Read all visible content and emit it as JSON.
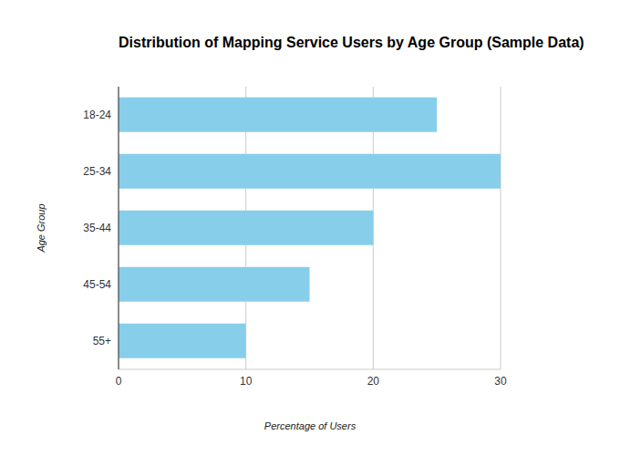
{
  "chart_data": {
    "type": "bar",
    "title": "Distribution of Mapping Service Users by Age Group (Sample Data)",
    "x_label": "Percentage of Users",
    "y_label": "Age Group",
    "categories": [
      "18-24",
      "25-34",
      "35-44",
      "45-54",
      "55+"
    ],
    "values": [
      25,
      30,
      20,
      15,
      10
    ],
    "color": "#87ceeb",
    "orientation": "horizontal",
    "xlim": [
      0,
      30
    ],
    "xticks": [
      0,
      10,
      20,
      30
    ],
    "grid": true
  }
}
